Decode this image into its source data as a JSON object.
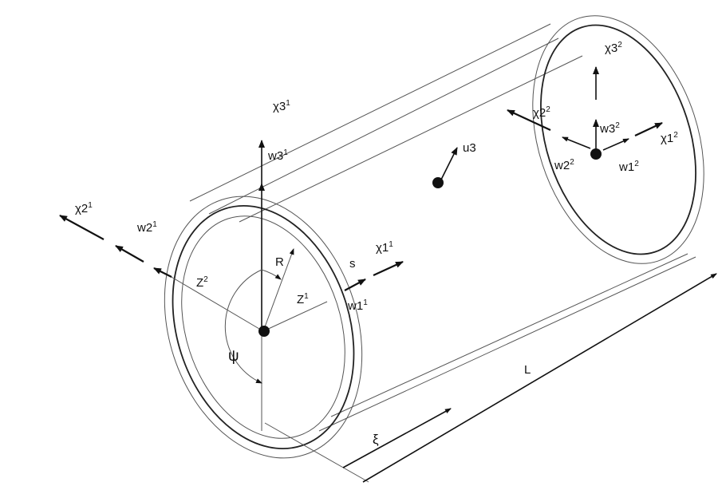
{
  "labels": {
    "chi3_1": {
      "base": "χ3",
      "sup": "1"
    },
    "w3_1": {
      "base": "w3",
      "sup": "1"
    },
    "chi2_1": {
      "base": "χ2",
      "sup": "1"
    },
    "w2_1": {
      "base": "w2",
      "sup": "1"
    },
    "z2": {
      "base": "Z",
      "sup": "2"
    },
    "r": {
      "base": "R",
      "sup": ""
    },
    "z1": {
      "base": "Z",
      "sup": "1"
    },
    "s": {
      "base": "s",
      "sup": ""
    },
    "chi1_1": {
      "base": "χ1",
      "sup": "1"
    },
    "w1_1": {
      "base": "w1",
      "sup": "1"
    },
    "psi": {
      "base": "ψ",
      "sup": ""
    },
    "u3": {
      "base": "u3",
      "sup": ""
    },
    "chi3_2": {
      "base": "χ3",
      "sup": "2"
    },
    "chi2_2": {
      "base": "χ2",
      "sup": "2"
    },
    "w3_2": {
      "base": "w3",
      "sup": "2"
    },
    "chi1_2": {
      "base": "χ1",
      "sup": "2"
    },
    "w2_2": {
      "base": "w2",
      "sup": "2"
    },
    "w1_2": {
      "base": "w1",
      "sup": "2"
    },
    "l": {
      "base": "L",
      "sup": ""
    },
    "xi": {
      "base": "ξ",
      "sup": ""
    }
  },
  "colors": {
    "ink": "#111111",
    "line": "#555555"
  }
}
